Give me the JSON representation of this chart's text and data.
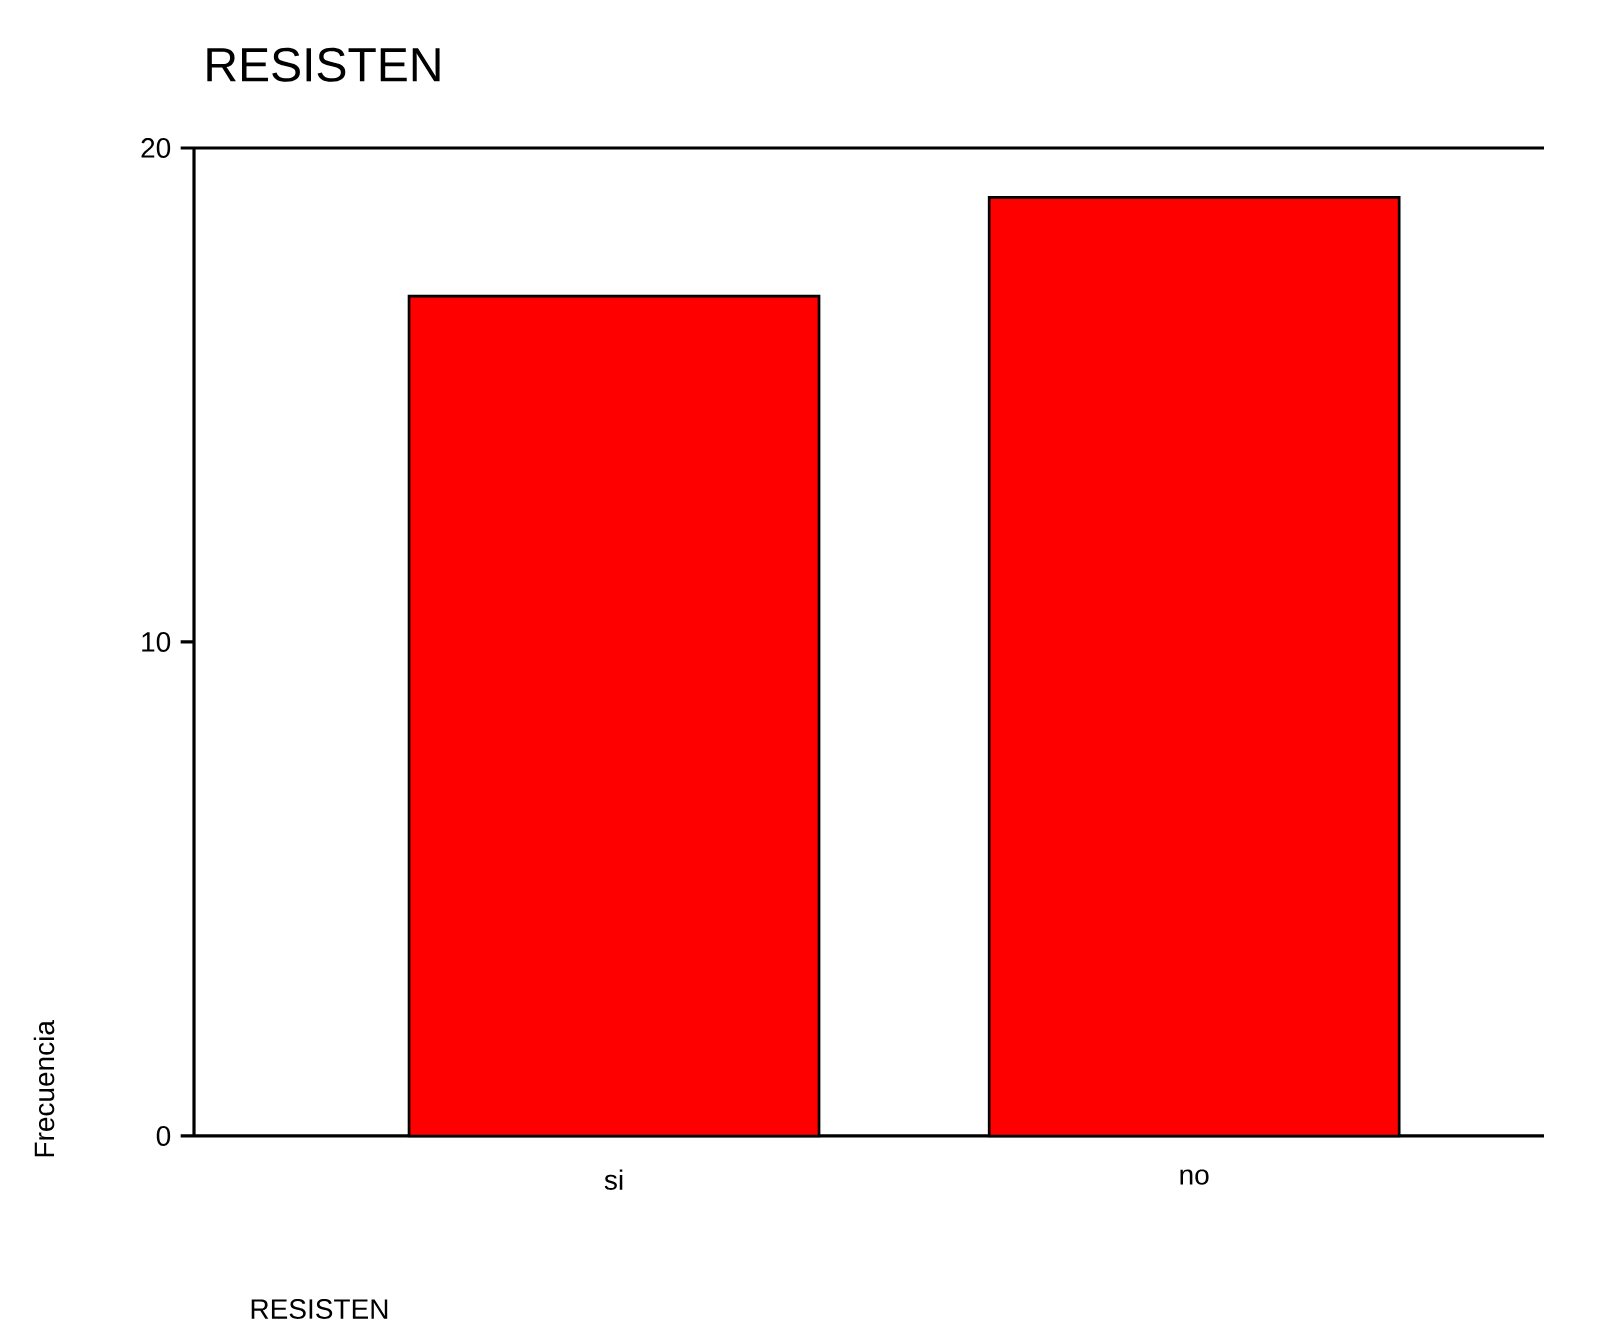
{
  "chart_data": {
    "type": "bar",
    "title": "RESISTEN",
    "xlabel": "RESISTEN",
    "ylabel": "Frecuencia",
    "categories": [
      "si",
      "no"
    ],
    "values": [
      17,
      19
    ],
    "color": "#ff0000",
    "ylim": [
      0,
      20
    ],
    "yticks": [
      0,
      10,
      20
    ]
  }
}
